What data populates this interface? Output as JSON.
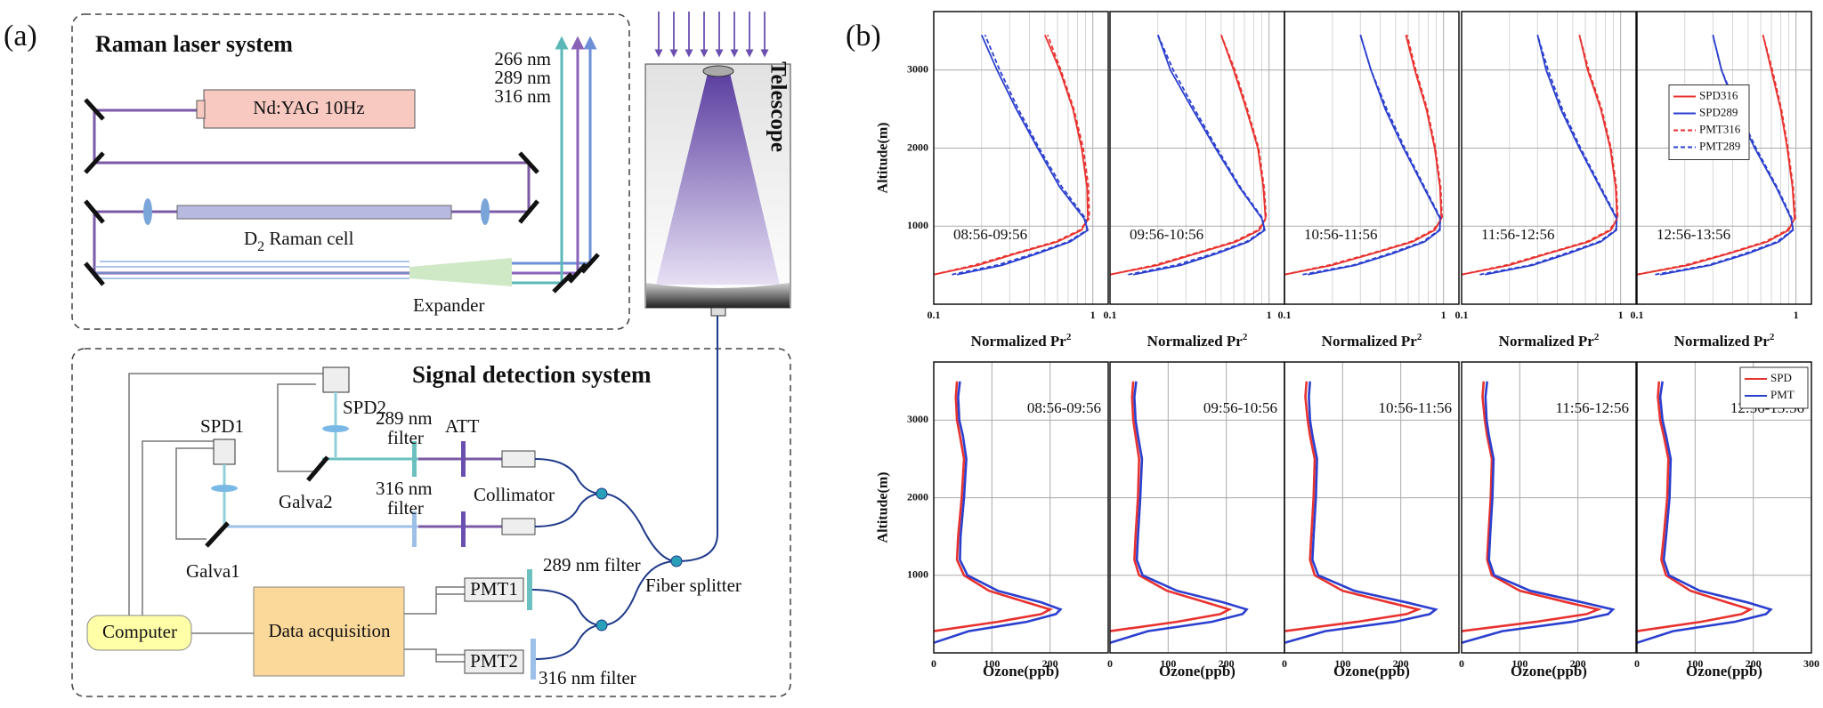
{
  "diagram": {
    "label_a": "(a)",
    "label_b": "(b)",
    "laser_system": "Raman laser system",
    "laser": "Nd:YAG 10Hz",
    "raman_cell": {
      "text": "D",
      "sub": "2",
      "rest": " Raman cell"
    },
    "expander": "Expander",
    "wavelengths": [
      "266 nm",
      "289 nm",
      "316 nm"
    ],
    "telescope": "Telescope",
    "detection_system": "Signal detection system",
    "spd2": "SPD2",
    "spd1": "SPD1",
    "filter_289": [
      "289 nm",
      "filter"
    ],
    "filter_316": [
      "316 nm",
      "filter"
    ],
    "att": "ATT",
    "collimator": "Collimator",
    "galva2": "Galva2",
    "galva1": "Galva1",
    "fiber_splitter": "Fiber splitter",
    "pmt1": "PMT1",
    "pmt2": "PMT2",
    "pmt1_filter": "289 nm filter",
    "pmt2_filter": "316 nm filter",
    "computer": "Computer",
    "data_acquisition": "Data acquisition"
  },
  "chart_data": [
    {
      "type": "line",
      "log_x": true,
      "grid": true,
      "y_label": "Altitude(m)",
      "x_label": {
        "text": "Normalized Pr",
        "sup": "2"
      },
      "annotation": "08:56-09:56",
      "xlim": [
        0.1,
        1.25
      ],
      "ylim": [
        0,
        3750
      ],
      "xticks": [
        0.1,
        1
      ],
      "xgrid_minor": [
        0.2,
        0.3,
        0.4,
        0.5,
        0.6,
        0.7,
        0.8,
        0.9
      ],
      "yticks": [
        1000,
        2000,
        3000
      ],
      "y": [
        380,
        500,
        650,
        800,
        950,
        1100,
        1500,
        2000,
        2500,
        3000,
        3450
      ],
      "series": [
        {
          "color": "#e8322f",
          "dash": false,
          "values": [
            0.1,
            0.19,
            0.33,
            0.6,
            0.85,
            0.93,
            0.92,
            0.85,
            0.75,
            0.62,
            0.5
          ]
        },
        {
          "color": "#2b3fcf",
          "dash": false,
          "values": [
            0.14,
            0.27,
            0.45,
            0.72,
            0.93,
            0.88,
            0.62,
            0.45,
            0.33,
            0.25,
            0.2
          ]
        },
        {
          "color": "#e8322f",
          "dash": true,
          "values": [
            0.1,
            0.18,
            0.32,
            0.58,
            0.83,
            0.95,
            0.94,
            0.87,
            0.76,
            0.63,
            0.52
          ]
        },
        {
          "color": "#2b3fcf",
          "dash": true,
          "values": [
            0.13,
            0.25,
            0.43,
            0.7,
            0.92,
            0.9,
            0.64,
            0.46,
            0.34,
            0.26,
            0.21
          ]
        }
      ]
    },
    {
      "type": "line",
      "log_x": true,
      "grid": true,
      "x_label": {
        "text": "Normalized Pr",
        "sup": "2"
      },
      "annotation": "09:56-10:56",
      "xlim": [
        0.1,
        1.25
      ],
      "ylim": [
        0,
        3750
      ],
      "xticks": [
        0.1,
        1
      ],
      "xgrid_minor": [
        0.2,
        0.3,
        0.4,
        0.5,
        0.6,
        0.7,
        0.8,
        0.9
      ],
      "yticks": [
        1000,
        2000,
        3000
      ],
      "y": [
        380,
        500,
        650,
        800,
        950,
        1100,
        1500,
        2000,
        2500,
        3000,
        3450
      ],
      "series": [
        {
          "color": "#e8322f",
          "dash": false,
          "values": [
            0.1,
            0.2,
            0.35,
            0.62,
            0.87,
            0.95,
            0.92,
            0.85,
            0.72,
            0.6,
            0.5
          ]
        },
        {
          "color": "#2b3fcf",
          "dash": false,
          "values": [
            0.14,
            0.28,
            0.47,
            0.74,
            0.94,
            0.9,
            0.65,
            0.46,
            0.33,
            0.24,
            0.2
          ]
        },
        {
          "color": "#e8322f",
          "dash": true,
          "values": [
            0.1,
            0.19,
            0.34,
            0.6,
            0.85,
            0.96,
            0.93,
            0.86,
            0.73,
            0.61,
            0.5
          ]
        },
        {
          "color": "#2b3fcf",
          "dash": true,
          "values": [
            0.13,
            0.26,
            0.45,
            0.72,
            0.93,
            0.91,
            0.66,
            0.47,
            0.34,
            0.25,
            0.2
          ]
        }
      ]
    },
    {
      "type": "line",
      "log_x": true,
      "grid": true,
      "x_label": {
        "text": "Normalized Pr",
        "sup": "2"
      },
      "annotation": "10:56-11:56",
      "xlim": [
        0.1,
        1.25
      ],
      "ylim": [
        0,
        3750
      ],
      "xticks": [
        0.1,
        1
      ],
      "xgrid_minor": [
        0.2,
        0.3,
        0.4,
        0.5,
        0.6,
        0.7,
        0.8,
        0.9
      ],
      "yticks": [
        1000,
        2000,
        3000
      ],
      "y": [
        380,
        500,
        650,
        800,
        950,
        1100,
        1500,
        2000,
        2500,
        3000,
        3450
      ],
      "series": [
        {
          "color": "#e8322f",
          "dash": false,
          "values": [
            0.1,
            0.2,
            0.36,
            0.64,
            0.88,
            0.97,
            0.95,
            0.88,
            0.78,
            0.66,
            0.58
          ]
        },
        {
          "color": "#2b3fcf",
          "dash": false,
          "values": [
            0.14,
            0.28,
            0.48,
            0.76,
            0.95,
            0.95,
            0.75,
            0.56,
            0.43,
            0.35,
            0.3
          ]
        },
        {
          "color": "#e8322f",
          "dash": true,
          "values": [
            0.1,
            0.19,
            0.35,
            0.62,
            0.86,
            0.98,
            0.96,
            0.89,
            0.79,
            0.67,
            0.59
          ]
        },
        {
          "color": "#2b3fcf",
          "dash": true,
          "values": [
            0.13,
            0.27,
            0.46,
            0.74,
            0.94,
            0.96,
            0.76,
            0.57,
            0.44,
            0.35,
            0.3
          ]
        }
      ]
    },
    {
      "type": "line",
      "log_x": true,
      "grid": true,
      "x_label": {
        "text": "Normalized Pr",
        "sup": "2"
      },
      "annotation": "11:56-12:56",
      "xlim": [
        0.1,
        1.25
      ],
      "ylim": [
        0,
        3750
      ],
      "xticks": [
        0.1,
        1
      ],
      "xgrid_minor": [
        0.2,
        0.3,
        0.4,
        0.5,
        0.6,
        0.7,
        0.8,
        0.9
      ],
      "yticks": [
        1000,
        2000,
        3000
      ],
      "y": [
        380,
        500,
        650,
        800,
        950,
        1100,
        1500,
        2000,
        2500,
        3000,
        3450
      ],
      "series": [
        {
          "color": "#e8322f",
          "dash": false,
          "values": [
            0.1,
            0.2,
            0.35,
            0.63,
            0.87,
            0.95,
            0.93,
            0.86,
            0.75,
            0.62,
            0.55
          ]
        },
        {
          "color": "#2b3fcf",
          "dash": false,
          "values": [
            0.14,
            0.28,
            0.47,
            0.75,
            0.94,
            0.94,
            0.74,
            0.55,
            0.42,
            0.34,
            0.3
          ]
        },
        {
          "color": "#e8322f",
          "dash": true,
          "values": [
            0.1,
            0.19,
            0.34,
            0.61,
            0.85,
            0.96,
            0.94,
            0.87,
            0.76,
            0.63,
            0.55
          ]
        },
        {
          "color": "#2b3fcf",
          "dash": true,
          "values": [
            0.13,
            0.27,
            0.45,
            0.73,
            0.93,
            0.95,
            0.75,
            0.56,
            0.43,
            0.35,
            0.3
          ]
        }
      ]
    },
    {
      "type": "line",
      "log_x": true,
      "grid": true,
      "x_label": {
        "text": "Normalized Pr",
        "sup": "2"
      },
      "annotation": "12:56-13:56",
      "legend": "left",
      "xlim": [
        0.1,
        1.25
      ],
      "ylim": [
        0,
        3750
      ],
      "xticks": [
        0.1,
        1
      ],
      "xgrid_minor": [
        0.2,
        0.3,
        0.4,
        0.5,
        0.6,
        0.7,
        0.8,
        0.9
      ],
      "yticks": [
        1000,
        2000,
        3000
      ],
      "y": [
        380,
        500,
        650,
        800,
        950,
        1100,
        1500,
        2000,
        2500,
        3000,
        3450
      ],
      "series": [
        {
          "name": "SPD316",
          "color": "#e8322f",
          "dash": false,
          "values": [
            0.1,
            0.21,
            0.38,
            0.66,
            0.9,
            0.98,
            0.95,
            0.88,
            0.8,
            0.7,
            0.62
          ]
        },
        {
          "name": "SPD289",
          "color": "#2b3fcf",
          "dash": false,
          "values": [
            0.14,
            0.29,
            0.5,
            0.78,
            0.96,
            0.93,
            0.75,
            0.55,
            0.42,
            0.34,
            0.3
          ]
        },
        {
          "name": "PMT316",
          "color": "#e8322f",
          "dash": true,
          "values": [
            0.1,
            0.2,
            0.37,
            0.64,
            0.88,
            0.99,
            0.96,
            0.89,
            0.81,
            0.71,
            0.62
          ]
        },
        {
          "name": "PMT289",
          "color": "#2b3fcf",
          "dash": true,
          "values": [
            0.13,
            0.28,
            0.48,
            0.76,
            0.95,
            0.94,
            0.76,
            0.56,
            0.43,
            0.34,
            0.3
          ]
        }
      ]
    },
    {
      "type": "line",
      "grid": true,
      "y_label": "Altitude(m)",
      "x_label": {
        "text": "Ozone(ppb)"
      },
      "annotation": "08:56-09:56",
      "xlim": [
        0,
        300
      ],
      "ylim": [
        0,
        3750
      ],
      "xticks": [
        0,
        100,
        200
      ],
      "yticks": [
        1000,
        2000,
        3000
      ],
      "y": [
        130,
        280,
        400,
        500,
        560,
        650,
        800,
        1000,
        1200,
        1500,
        2000,
        2500,
        2800,
        3000,
        3300,
        3500
      ],
      "series": [
        {
          "color": "#e8322f",
          "dash": false,
          "values": [
            null,
            0,
            110,
            185,
            200,
            160,
            95,
            52,
            40,
            42,
            48,
            52,
            45,
            40,
            38,
            40
          ]
        },
        {
          "color": "#2b3fcf",
          "dash": false,
          "values": [
            0,
            60,
            160,
            210,
            218,
            185,
            110,
            58,
            45,
            46,
            52,
            56,
            50,
            44,
            42,
            45
          ]
        }
      ]
    },
    {
      "type": "line",
      "grid": true,
      "x_label": {
        "text": "Ozone(ppb)"
      },
      "annotation": "09:56-10:56",
      "xlim": [
        0,
        300
      ],
      "ylim": [
        0,
        3750
      ],
      "xticks": [
        0,
        100,
        200
      ],
      "yticks": [
        1000,
        2000,
        3000
      ],
      "y": [
        130,
        280,
        400,
        500,
        560,
        650,
        800,
        1000,
        1200,
        1500,
        2000,
        2500,
        2800,
        3000,
        3300,
        3500
      ],
      "series": [
        {
          "color": "#e8322f",
          "dash": false,
          "values": [
            null,
            0,
            115,
            190,
            205,
            165,
            98,
            50,
            42,
            44,
            48,
            50,
            44,
            40,
            38,
            40
          ]
        },
        {
          "color": "#2b3fcf",
          "dash": false,
          "values": [
            0,
            65,
            175,
            228,
            235,
            195,
            115,
            56,
            46,
            48,
            52,
            55,
            48,
            44,
            42,
            45
          ]
        }
      ]
    },
    {
      "type": "line",
      "grid": true,
      "x_label": {
        "text": "Ozone(ppb)"
      },
      "annotation": "10:56-11:56",
      "xlim": [
        0,
        300
      ],
      "ylim": [
        0,
        3750
      ],
      "xticks": [
        0,
        100,
        200
      ],
      "yticks": [
        1000,
        2000,
        3000
      ],
      "y": [
        130,
        280,
        400,
        500,
        560,
        650,
        800,
        1000,
        1200,
        1500,
        2000,
        2500,
        2800,
        3000,
        3300,
        3500
      ],
      "series": [
        {
          "color": "#e8322f",
          "dash": false,
          "values": [
            null,
            0,
            125,
            210,
            230,
            180,
            100,
            52,
            44,
            46,
            50,
            52,
            44,
            40,
            36,
            38
          ]
        },
        {
          "color": "#2b3fcf",
          "dash": false,
          "values": [
            0,
            70,
            190,
            250,
            260,
            210,
            120,
            58,
            48,
            50,
            54,
            56,
            48,
            44,
            42,
            44
          ]
        }
      ]
    },
    {
      "type": "line",
      "grid": true,
      "x_label": {
        "text": "Ozone(ppb)"
      },
      "annotation": "11:56-12:56",
      "xlim": [
        0,
        300
      ],
      "ylim": [
        0,
        3750
      ],
      "xticks": [
        0,
        100,
        200
      ],
      "yticks": [
        1000,
        2000,
        3000
      ],
      "y": [
        130,
        280,
        400,
        500,
        560,
        650,
        800,
        1000,
        1200,
        1500,
        2000,
        2500,
        2800,
        3000,
        3300,
        3500
      ],
      "series": [
        {
          "color": "#e8322f",
          "dash": false,
          "values": [
            null,
            0,
            128,
            215,
            235,
            182,
            100,
            52,
            44,
            46,
            50,
            52,
            44,
            40,
            36,
            38
          ]
        },
        {
          "color": "#2b3fcf",
          "dash": false,
          "values": [
            0,
            70,
            190,
            252,
            260,
            208,
            118,
            56,
            47,
            49,
            53,
            55,
            47,
            43,
            41,
            44
          ]
        }
      ]
    },
    {
      "type": "line",
      "grid": true,
      "x_label": {
        "text": "Ozone(ppb)"
      },
      "annotation": "12:56-13:56",
      "legend": "upper right",
      "xlim": [
        0,
        300
      ],
      "ylim": [
        0,
        3750
      ],
      "xticks": [
        0,
        100,
        200,
        300
      ],
      "yticks": [
        1000,
        2000,
        3000
      ],
      "y": [
        130,
        280,
        400,
        500,
        560,
        650,
        800,
        1000,
        1200,
        1500,
        2000,
        2500,
        2800,
        3000,
        3300,
        3500
      ],
      "series": [
        {
          "name": "SPD",
          "color": "#e8322f",
          "dash": false,
          "values": [
            null,
            0,
            110,
            180,
            195,
            155,
            92,
            50,
            42,
            46,
            52,
            54,
            46,
            40,
            36,
            38
          ]
        },
        {
          "name": "PMT",
          "color": "#2b3fcf",
          "dash": false,
          "values": [
            0,
            62,
            168,
            222,
            230,
            190,
            108,
            55,
            46,
            50,
            56,
            58,
            50,
            44,
            40,
            44
          ]
        }
      ]
    }
  ]
}
